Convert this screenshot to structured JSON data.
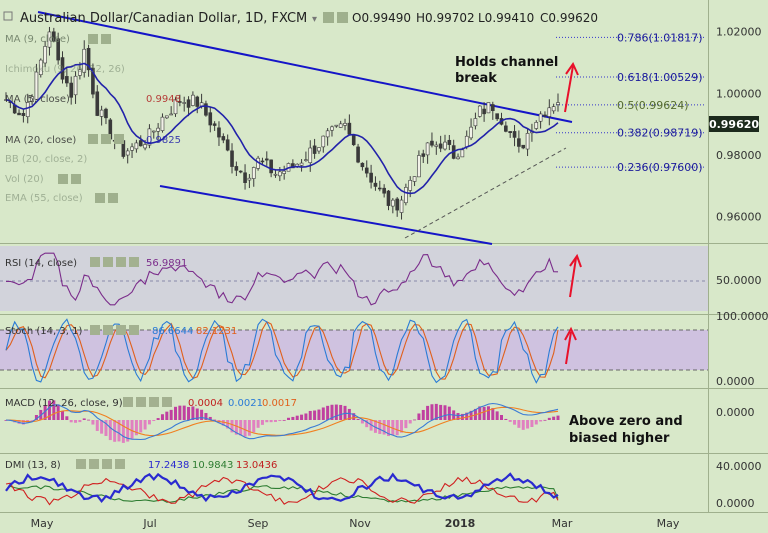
{
  "header": {
    "symbol": "Australian Dollar/Canadian Dollar, 1D, FXCM",
    "ohlc": {
      "open": "O0.99490",
      "high": "H0.99702",
      "low": "L0.99410",
      "close": "C0.99620"
    }
  },
  "overlay_legends": [
    {
      "label": "MA (9, close)"
    },
    {
      "label": "Ichimoku (9, 26, 52, 26)"
    },
    {
      "label": "MA (5, close)",
      "value": "0.9948"
    },
    {
      "label": "MA (20, close)",
      "value": "0.9825"
    },
    {
      "label": "BB (20, close, 2)"
    },
    {
      "label": "Vol (20)"
    },
    {
      "label": "EMA (55, close)"
    }
  ],
  "annotations": {
    "channel_text": "Holds channel\nbreak",
    "macd_text": "Above zero and\nbiased higher"
  },
  "price_badge": "0.99620",
  "colors": {
    "bg": "#d8e8c9",
    "channel": "#1515c8",
    "ma": "#2222aa",
    "candle": "#3a3a3a",
    "fib_line": "#3333cc",
    "arrow": "#e8102a",
    "rsi_line": "#7b2d8b",
    "stoch_k": "#2a7bd6",
    "stoch_d": "#e0601c",
    "macd_line": "#3a7bd5",
    "signal": "#f08020",
    "hist_pos": "#c040a0",
    "dmi_plus": "#2a2ad0",
    "dmi_minus": "#d02020",
    "adx": "#2e7d32"
  },
  "chart_data": [
    {
      "type": "candlestick",
      "panel": "price",
      "y_ticks": [
        "1.02000",
        "1.00000",
        "0.98000",
        "0.96000"
      ],
      "ylim": [
        0.952,
        1.029
      ],
      "x_ticks": [
        "May",
        "Jul",
        "Sep",
        "Nov",
        "2018",
        "Mar",
        "May"
      ],
      "close_path": [
        [
          0,
          0.998
        ],
        [
          4,
          0.993
        ],
        [
          7,
          1.005
        ],
        [
          10,
          1.021
        ],
        [
          12,
          1.01
        ],
        [
          15,
          1.0
        ],
        [
          18,
          1.014
        ],
        [
          21,
          0.995
        ],
        [
          24,
          0.987
        ],
        [
          27,
          0.981
        ],
        [
          30,
          0.983
        ],
        [
          33,
          0.986
        ],
        [
          36,
          0.992
        ],
        [
          40,
          0.998
        ],
        [
          44,
          0.997
        ],
        [
          48,
          0.989
        ],
        [
          52,
          0.978
        ],
        [
          55,
          0.973
        ],
        [
          58,
          0.978
        ],
        [
          62,
          0.974
        ],
        [
          66,
          0.976
        ],
        [
          70,
          0.981
        ],
        [
          74,
          0.986
        ],
        [
          78,
          0.989
        ],
        [
          82,
          0.977
        ],
        [
          86,
          0.968
        ],
        [
          89,
          0.963
        ],
        [
          91,
          0.966
        ],
        [
          94,
          0.975
        ],
        [
          97,
          0.982
        ],
        [
          100,
          0.984
        ],
        [
          103,
          0.98
        ],
        [
          106,
          0.985
        ],
        [
          109,
          0.994
        ],
        [
          112,
          0.996
        ],
        [
          115,
          0.99
        ],
        [
          118,
          0.981
        ],
        [
          121,
          0.99
        ],
        [
          124,
          0.995
        ],
        [
          127,
          0.998
        ]
      ],
      "fib_levels": [
        {
          "label": "0.786(1.01817)",
          "value": 1.01817
        },
        {
          "label": "0.618(1.00529)",
          "value": 1.00529
        },
        {
          "label": "0.5(0.99624)",
          "value": 0.99624
        },
        {
          "label": "0.382(0.98719)",
          "value": 0.98719
        },
        {
          "label": "0.236(0.97600)",
          "value": 0.976
        }
      ]
    },
    {
      "type": "line",
      "panel": "rsi",
      "series": [
        {
          "name": "RSI (14, close)",
          "last": "56.9891"
        }
      ],
      "y_ticks": [
        "50.0000"
      ],
      "ylim": [
        20,
        80
      ]
    },
    {
      "type": "line",
      "panel": "stoch",
      "series": [
        {
          "name": "Stoch (14, 3, 1)",
          "k": "86.6644",
          "d": "82.1231"
        }
      ],
      "y_ticks": [
        "100.0000",
        "0.0000"
      ],
      "ylim": [
        0,
        100
      ]
    },
    {
      "type": "line",
      "panel": "macd",
      "series": [
        {
          "name": "MACD (12, 26, close, 9)",
          "histogram": "0.0004",
          "macd": "0.0021",
          "signal": "0.0017"
        }
      ],
      "y_ticks": [
        "0.0000"
      ],
      "ylim": [
        -0.008,
        0.008
      ]
    },
    {
      "type": "line",
      "panel": "dmi",
      "series": [
        {
          "name": "DMI (13, 8)",
          "plus_di": "17.2438",
          "minus_di": "10.9843",
          "adx": "13.0436"
        }
      ],
      "y_ticks": [
        "40.0000",
        "0.0000"
      ],
      "ylim": [
        0,
        60
      ]
    }
  ]
}
